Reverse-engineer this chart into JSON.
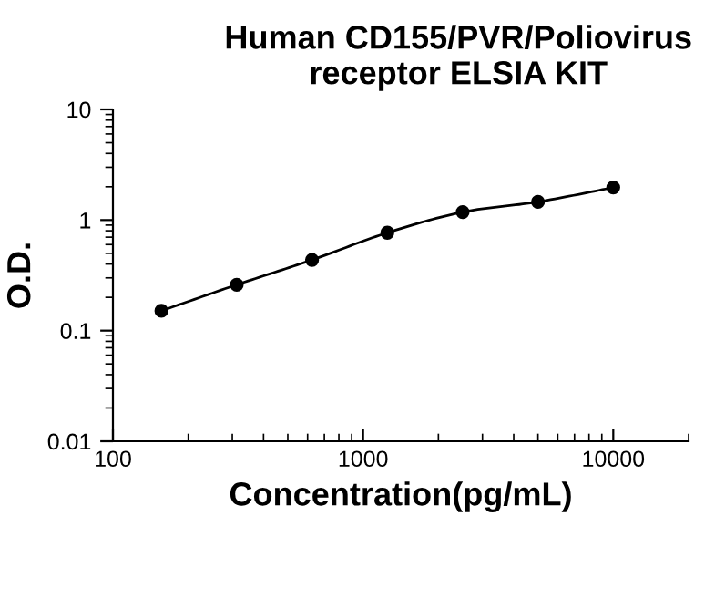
{
  "chart_data": {
    "type": "line",
    "title": "Human CD155/PVR/Poliovirus\nreceptor ELSIA KIT",
    "xlabel": "Concentration(pg/mL)",
    "ylabel": "O.D.",
    "x": [
      156.25,
      312.5,
      625,
      1250,
      2500,
      5000,
      10000
    ],
    "series": [
      {
        "color": "#000000",
        "values": [
          0.151,
          0.26,
          0.436,
          0.768,
          1.18,
          1.46,
          1.97
        ]
      }
    ],
    "log": "xy",
    "xlim": [
      100,
      20000
    ],
    "ylim": [
      0.01,
      10
    ],
    "xticks": [
      100,
      1000,
      10000
    ],
    "yticks": [
      0.01,
      0.1,
      1,
      10
    ],
    "grid": false,
    "legend": false,
    "marker": "circle",
    "line_style": "solid"
  }
}
